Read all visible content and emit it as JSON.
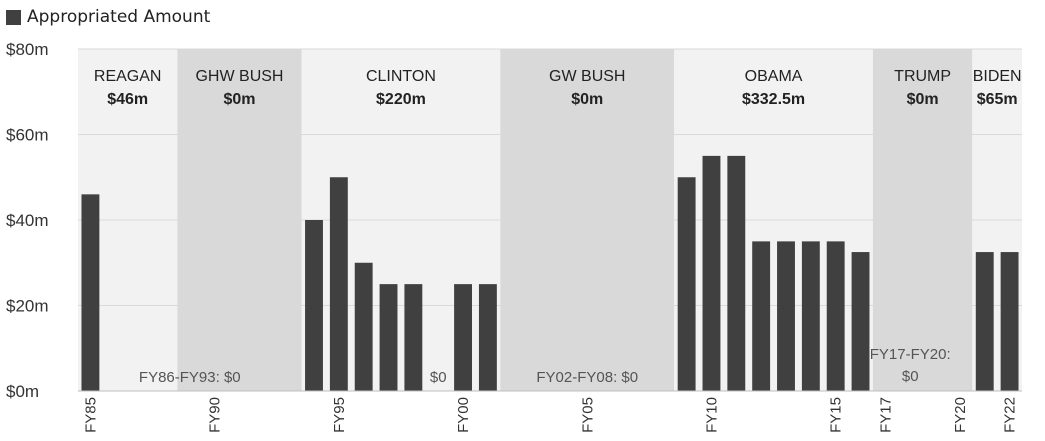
{
  "legend": {
    "label": "Appropriated Amount",
    "color": "#404040"
  },
  "chart_data": {
    "type": "bar",
    "title": "",
    "xlabel": "",
    "ylabel": "",
    "ylim": [
      0,
      80
    ],
    "y_ticks": [
      "$0m",
      "$20m",
      "$40m",
      "$60m",
      "$80m"
    ],
    "grid": true,
    "legend_position": "top-left",
    "categories": [
      "FY85",
      "FY86",
      "FY87",
      "FY88",
      "FY89",
      "FY90",
      "FY91",
      "FY92",
      "FY93",
      "FY94",
      "FY95",
      "FY96",
      "FY97",
      "FY98",
      "FY99",
      "FY00",
      "FY01",
      "FY02",
      "FY03",
      "FY04",
      "FY05",
      "FY06",
      "FY07",
      "FY08",
      "FY09",
      "FY10",
      "FY11",
      "FY12",
      "FY13",
      "FY14",
      "FY15",
      "FY16",
      "FY17",
      "FY18",
      "FY19",
      "FY20",
      "FY21",
      "FY22"
    ],
    "x_tick_labels": [
      "FY85",
      "FY90",
      "FY95",
      "FY00",
      "FY05",
      "FY10",
      "FY15",
      "FY17",
      "FY20",
      "FY22"
    ],
    "series": [
      {
        "name": "Appropriated Amount",
        "values": [
          46,
          0,
          0,
          0,
          0,
          0,
          0,
          0,
          0,
          40,
          50,
          30,
          25,
          25,
          0,
          25,
          25,
          0,
          0,
          0,
          0,
          0,
          0,
          0,
          50,
          55,
          55,
          35,
          35,
          35,
          35,
          32.5,
          0,
          0,
          0,
          0,
          32.5,
          32.5
        ]
      }
    ],
    "administrations": [
      {
        "name": "REAGAN",
        "total": "$46m",
        "start": "FY85",
        "end": "FY88"
      },
      {
        "name": "GHW BUSH",
        "total": "$0m",
        "start": "FY89",
        "end": "FY93"
      },
      {
        "name": "CLINTON",
        "total": "$220m",
        "start": "FY94",
        "end": "FY01"
      },
      {
        "name": "GW BUSH",
        "total": "$0m",
        "start": "FY02",
        "end": "FY08"
      },
      {
        "name": "OBAMA",
        "total": "$332.5m",
        "start": "FY09",
        "end": "FY16"
      },
      {
        "name": "TRUMP",
        "total": "$0m",
        "start": "FY17",
        "end": "FY20"
      },
      {
        "name": "BIDEN",
        "total": "$65m",
        "start": "FY21",
        "end": "FY22"
      }
    ],
    "annotations": [
      {
        "text": "FY86-FY93: $0",
        "at": "FY89"
      },
      {
        "text": "$0",
        "at": "FY99"
      },
      {
        "text": "FY02-FY08: $0",
        "at": "FY05"
      },
      {
        "text": "FY17-FY20: $0",
        "at": "FY18"
      }
    ],
    "colors": {
      "bar": "#404040",
      "band_light": "#f2f2f2",
      "band_dark": "#d9d9d9",
      "grid": "#d9d9d9",
      "text": "#333333"
    }
  }
}
